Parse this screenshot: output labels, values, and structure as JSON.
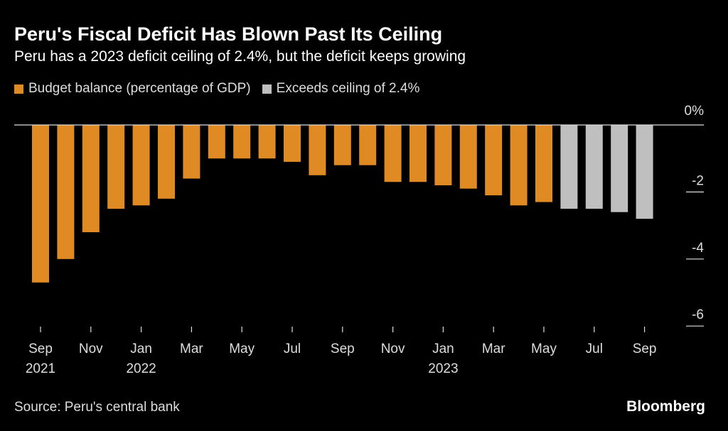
{
  "title": "Peru's Fiscal Deficit Has Blown Past Its Ceiling",
  "subtitle": "Peru has a 2023 deficit ceiling of 2.4%, but the deficit keeps growing",
  "source": "Source: Peru's central bank",
  "brand": "Bloomberg",
  "chart_data": {
    "type": "bar",
    "categories": [
      "Sep 2021",
      "Oct 2021",
      "Nov 2021",
      "Dec 2021",
      "Jan 2022",
      "Feb 2022",
      "Mar 2022",
      "Apr 2022",
      "May 2022",
      "Jun 2022",
      "Jul 2022",
      "Aug 2022",
      "Sep 2022",
      "Oct 2022",
      "Nov 2022",
      "Dec 2022",
      "Jan 2023",
      "Feb 2023",
      "Mar 2023",
      "Apr 2023",
      "May 2023",
      "Jun 2023",
      "Jul 2023",
      "Aug 2023",
      "Sep 2023"
    ],
    "values": [
      -4.7,
      -4.0,
      -3.2,
      -2.5,
      -2.4,
      -2.2,
      -1.6,
      -1.0,
      -1.0,
      -1.0,
      -1.1,
      -1.5,
      -1.2,
      -1.2,
      -1.7,
      -1.7,
      -1.8,
      -1.9,
      -2.1,
      -2.4,
      -2.3,
      -2.5,
      -2.5,
      -2.6,
      -2.8
    ],
    "exceeds_ceiling": [
      false,
      false,
      false,
      false,
      false,
      false,
      false,
      false,
      false,
      false,
      false,
      false,
      false,
      false,
      false,
      false,
      false,
      false,
      false,
      false,
      false,
      true,
      true,
      true,
      true
    ],
    "series": [
      {
        "name": "Budget balance (percentage of GDP)",
        "color": "#e08a24"
      },
      {
        "name": "Exceeds ceiling of 2.4%",
        "color": "#bfbfbf"
      }
    ],
    "x_tick_labels": [
      {
        "index": 0,
        "label": "Sep",
        "year": "2021"
      },
      {
        "index": 2,
        "label": "Nov",
        "year": ""
      },
      {
        "index": 4,
        "label": "Jan",
        "year": "2022"
      },
      {
        "index": 6,
        "label": "Mar",
        "year": ""
      },
      {
        "index": 8,
        "label": "May",
        "year": ""
      },
      {
        "index": 10,
        "label": "Jul",
        "year": ""
      },
      {
        "index": 12,
        "label": "Sep",
        "year": ""
      },
      {
        "index": 14,
        "label": "Nov",
        "year": ""
      },
      {
        "index": 16,
        "label": "Jan",
        "year": "2023"
      },
      {
        "index": 18,
        "label": "Mar",
        "year": ""
      },
      {
        "index": 20,
        "label": "May",
        "year": ""
      },
      {
        "index": 22,
        "label": "Jul",
        "year": ""
      },
      {
        "index": 24,
        "label": "Sep",
        "year": ""
      }
    ],
    "y_ticks": [
      {
        "value": 0,
        "label": "0%"
      },
      {
        "value": -2,
        "label": "-2"
      },
      {
        "value": -4,
        "label": "-4"
      },
      {
        "value": -6,
        "label": "-6"
      }
    ],
    "ylim": [
      -6,
      0
    ],
    "grid": false,
    "legend_position": "top-left"
  }
}
